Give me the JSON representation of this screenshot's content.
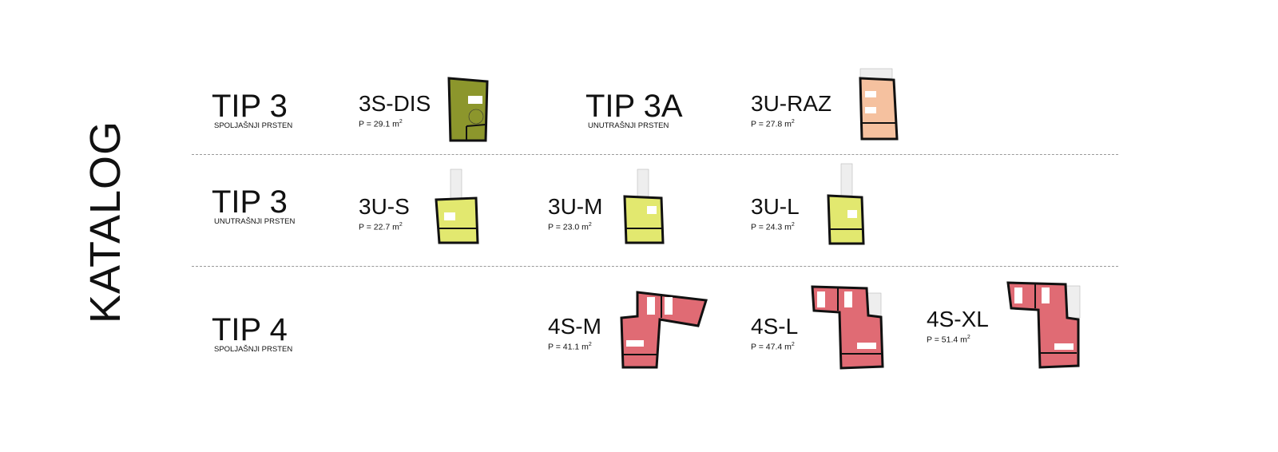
{
  "title": "KATALOG",
  "colors": {
    "olive": "#8c962c",
    "peach": "#f5c19f",
    "lime": "#e2e86f",
    "red": "#e06b74",
    "wall": "#111111",
    "divider": "#9a9a9a"
  },
  "groups": [
    {
      "tip": "TIP 3",
      "ring": "SPOLJAŠNJI PRSTEN"
    },
    {
      "tip": "TIP 3A",
      "ring": "UNUTRAŠNJI PRSTEN"
    },
    {
      "tip": "TIP 3",
      "ring": "UNUTRAŠNJI PRSTEN"
    },
    {
      "tip": "TIP 4",
      "ring": "SPOLJAŠNJI PRSTEN"
    }
  ],
  "units": [
    {
      "name": "3S-DIS",
      "area": "P = 29.1 m",
      "unit_sup": "2"
    },
    {
      "name": "3U-RAZ",
      "area": "P =  27.8 m",
      "unit_sup": "2"
    },
    {
      "name": "3U-S",
      "area": "P = 22.7 m",
      "unit_sup": "2"
    },
    {
      "name": "3U-M",
      "area": "P = 23.0 m",
      "unit_sup": "2"
    },
    {
      "name": "3U-L",
      "area": "P =  24.3 m",
      "unit_sup": "2"
    },
    {
      "name": "4S-M",
      "area": "P = 41.1 m",
      "unit_sup": "2"
    },
    {
      "name": "4S-L",
      "area": "P =  47.4 m",
      "unit_sup": "2"
    },
    {
      "name": "4S-XL",
      "area": "P = 51.4 m",
      "unit_sup": "2"
    }
  ]
}
